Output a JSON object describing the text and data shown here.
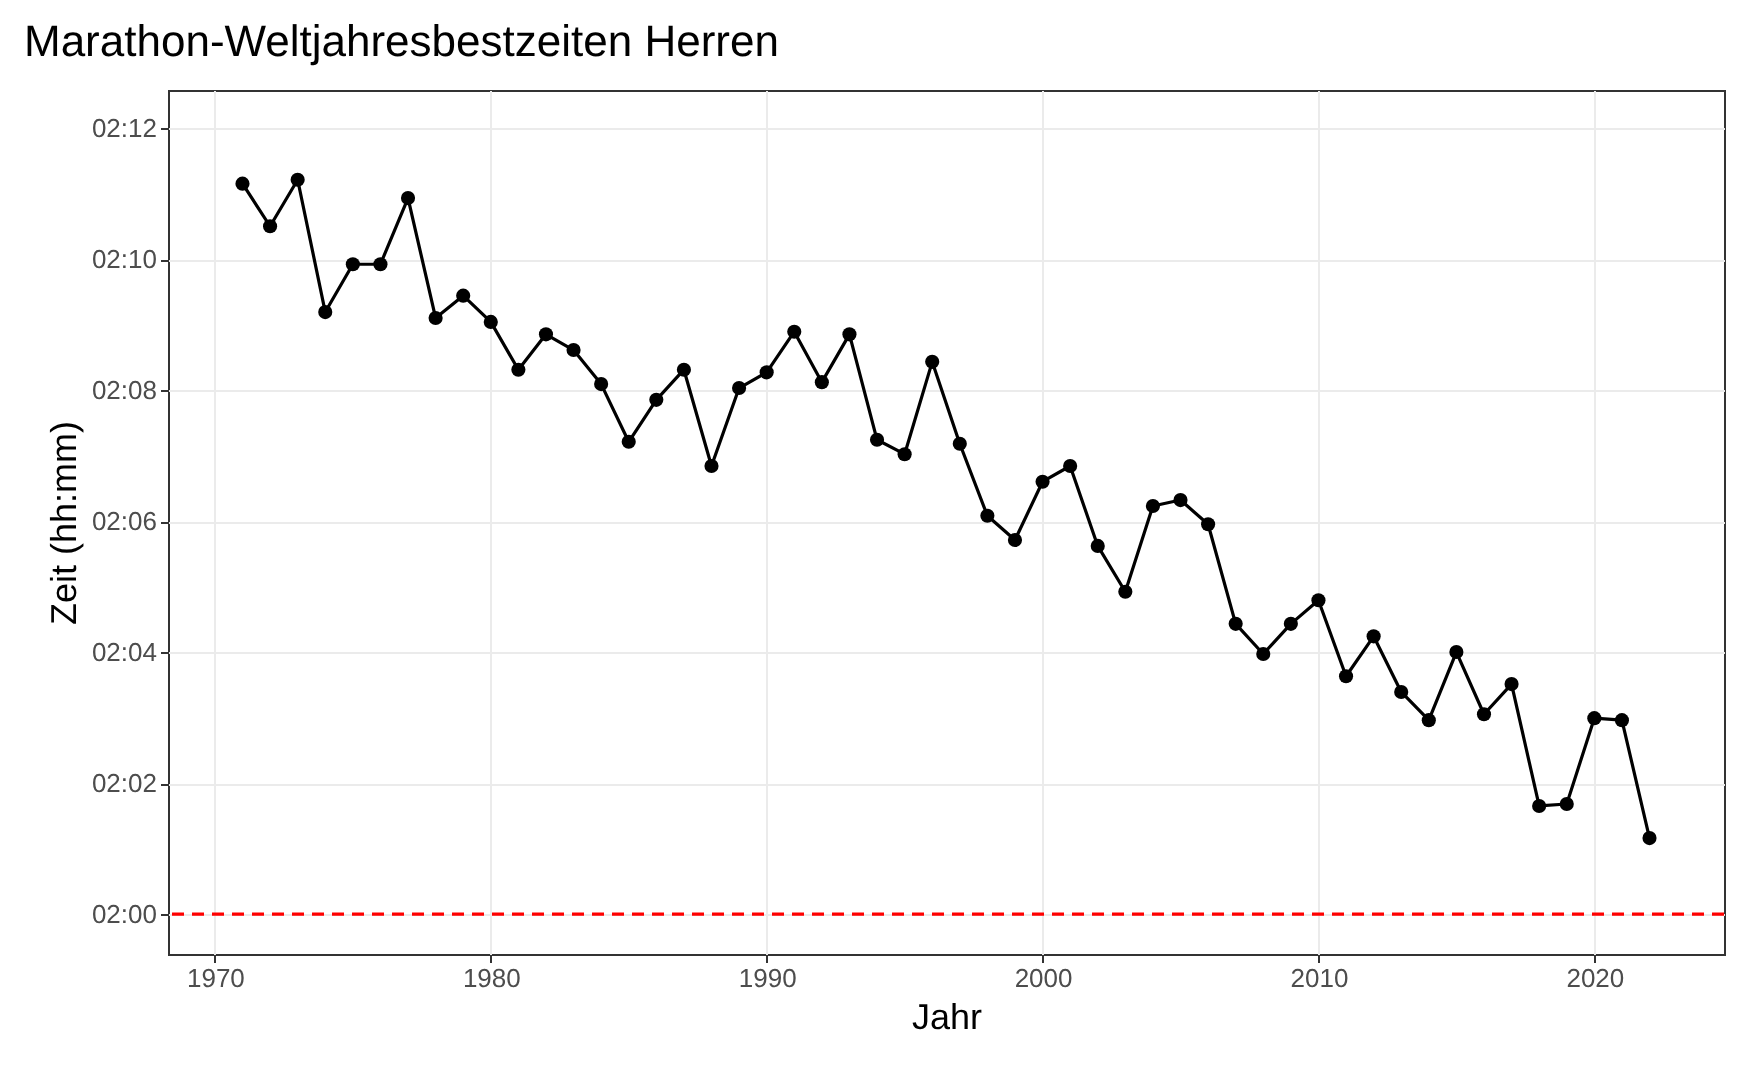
{
  "chart_data": {
    "type": "line",
    "title": "Marathon-Weltjahresbestzeiten Herren",
    "xlabel": "Jahr",
    "ylabel": "Zeit (hh:mm)",
    "x": [
      1971,
      1972,
      1973,
      1974,
      1975,
      1976,
      1977,
      1978,
      1979,
      1980,
      1981,
      1982,
      1983,
      1984,
      1985,
      1986,
      1987,
      1988,
      1989,
      1990,
      1991,
      1992,
      1993,
      1994,
      1995,
      1996,
      1997,
      1998,
      1999,
      2000,
      2001,
      2002,
      2003,
      2004,
      2005,
      2006,
      2007,
      2008,
      2009,
      2010,
      2011,
      2012,
      2013,
      2014,
      2015,
      2016,
      2017,
      2018,
      2019,
      2020,
      2021,
      2022
    ],
    "series": [
      {
        "color": "#000000",
        "values": [
          131.15,
          130.5,
          131.21,
          129.19,
          129.92,
          129.92,
          130.93,
          129.1,
          129.44,
          129.04,
          128.31,
          128.85,
          128.61,
          128.09,
          127.21,
          127.85,
          128.31,
          126.84,
          128.03,
          128.27,
          128.89,
          128.12,
          128.85,
          127.24,
          127.02,
          128.43,
          127.18,
          126.08,
          125.71,
          126.6,
          126.84,
          125.62,
          124.92,
          126.23,
          126.32,
          125.95,
          124.43,
          123.97,
          124.43,
          124.79,
          123.63,
          124.24,
          123.39,
          122.96,
          124.0,
          123.05,
          123.51,
          121.65,
          121.68,
          122.99,
          122.96,
          121.16
        ]
      }
    ],
    "xlim": [
      1968.3,
      2024.7
    ],
    "xticks": [
      1970,
      1980,
      1990,
      2000,
      2010,
      2020
    ],
    "ylim": [
      119.39,
      132.58
    ],
    "yticks": [
      {
        "value": 120,
        "label": "02:00"
      },
      {
        "value": 122,
        "label": "02:02"
      },
      {
        "value": 124,
        "label": "02:04"
      },
      {
        "value": 126,
        "label": "02:06"
      },
      {
        "value": 128,
        "label": "02:08"
      },
      {
        "value": 130,
        "label": "02:10"
      },
      {
        "value": 132,
        "label": "02:12"
      }
    ],
    "ref_lines": [
      {
        "axis": "y",
        "value": 120,
        "color": "#ff0000",
        "line_style": "dashed"
      }
    ],
    "grid": true,
    "marker": "circle",
    "line_style": "solid",
    "legend": false
  }
}
